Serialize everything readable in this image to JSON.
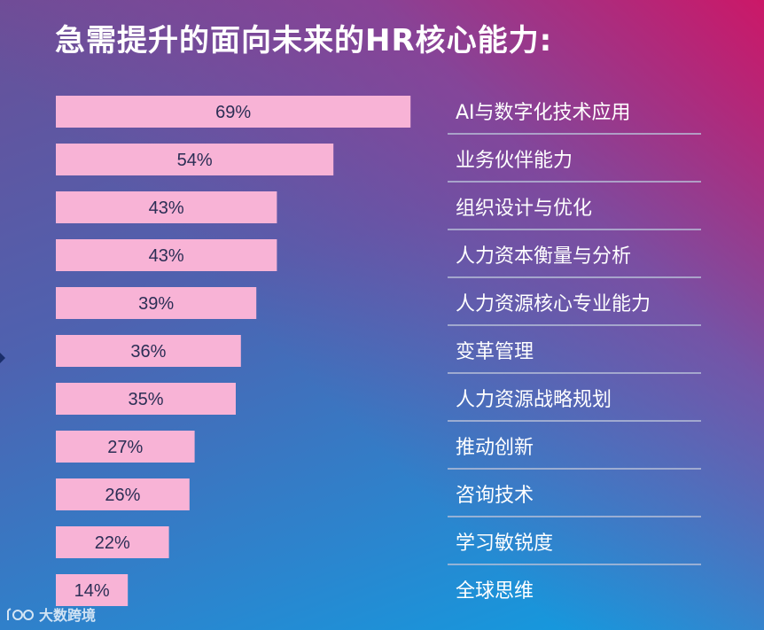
{
  "title": "急需提升的面向未来的HR核心能力:",
  "watermark": {
    "text": "大数跨境"
  },
  "colors": {
    "bar": "#f8b3d6",
    "bar_text": "#2b2e55",
    "category_text": "#ffffff",
    "separator": "#b8c0d8"
  },
  "chart_data": {
    "type": "bar",
    "orientation": "horizontal",
    "title": "急需提升的面向未来的HR核心能力:",
    "xlabel": "",
    "ylabel": "",
    "xlim": [
      0,
      100
    ],
    "grid": false,
    "value_unit": "%",
    "categories": [
      "AI与数字化技术应用",
      "业务伙伴能力",
      "组织设计与优化",
      "人力资本衡量与分析",
      "人力资源核心专业能力",
      "变革管理",
      "人力资源战略规划",
      "推动创新",
      "咨询技术",
      "学习敏锐度",
      "全球思维"
    ],
    "values": [
      69,
      54,
      43,
      43,
      39,
      36,
      35,
      27,
      26,
      22,
      14
    ],
    "value_labels": [
      "69%",
      "54%",
      "43%",
      "43%",
      "39%",
      "36%",
      "35%",
      "27%",
      "26%",
      "22%",
      "14%"
    ]
  }
}
